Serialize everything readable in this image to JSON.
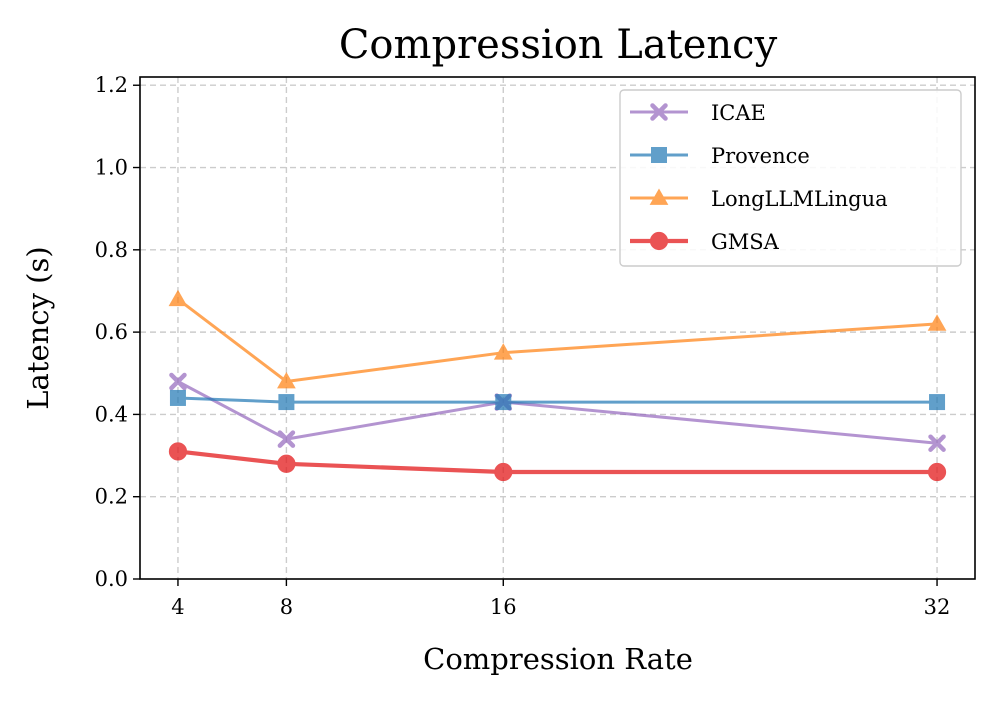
{
  "chart_data": {
    "type": "line",
    "title": "Compression Latency",
    "xlabel": "Compression Rate",
    "ylabel": "Latency (s)",
    "x": [
      4,
      8,
      16,
      32
    ],
    "xticks": [
      "4",
      "8",
      "16",
      "32"
    ],
    "yticks": [
      "0.0",
      "0.2",
      "0.4",
      "0.6",
      "0.8",
      "1.0",
      "1.2"
    ],
    "ylim": [
      0,
      1.22
    ],
    "xlim": [
      2.6,
      33.4
    ],
    "grid": true,
    "legend_position": "top-right",
    "series": [
      {
        "name": "ICAE",
        "values": [
          0.48,
          0.34,
          0.43,
          0.33
        ],
        "color": "#9467bd",
        "marker": "x"
      },
      {
        "name": "Provence",
        "values": [
          0.44,
          0.43,
          0.43,
          0.43
        ],
        "color": "#1f77b4",
        "marker": "square"
      },
      {
        "name": "LongLLMLingua",
        "values": [
          0.68,
          0.48,
          0.55,
          0.62
        ],
        "color": "#ff7f0e",
        "marker": "triangle"
      },
      {
        "name": "GMSA",
        "values": [
          0.31,
          0.28,
          0.26,
          0.26
        ],
        "color": "#e41a1c",
        "marker": "circle"
      }
    ]
  }
}
